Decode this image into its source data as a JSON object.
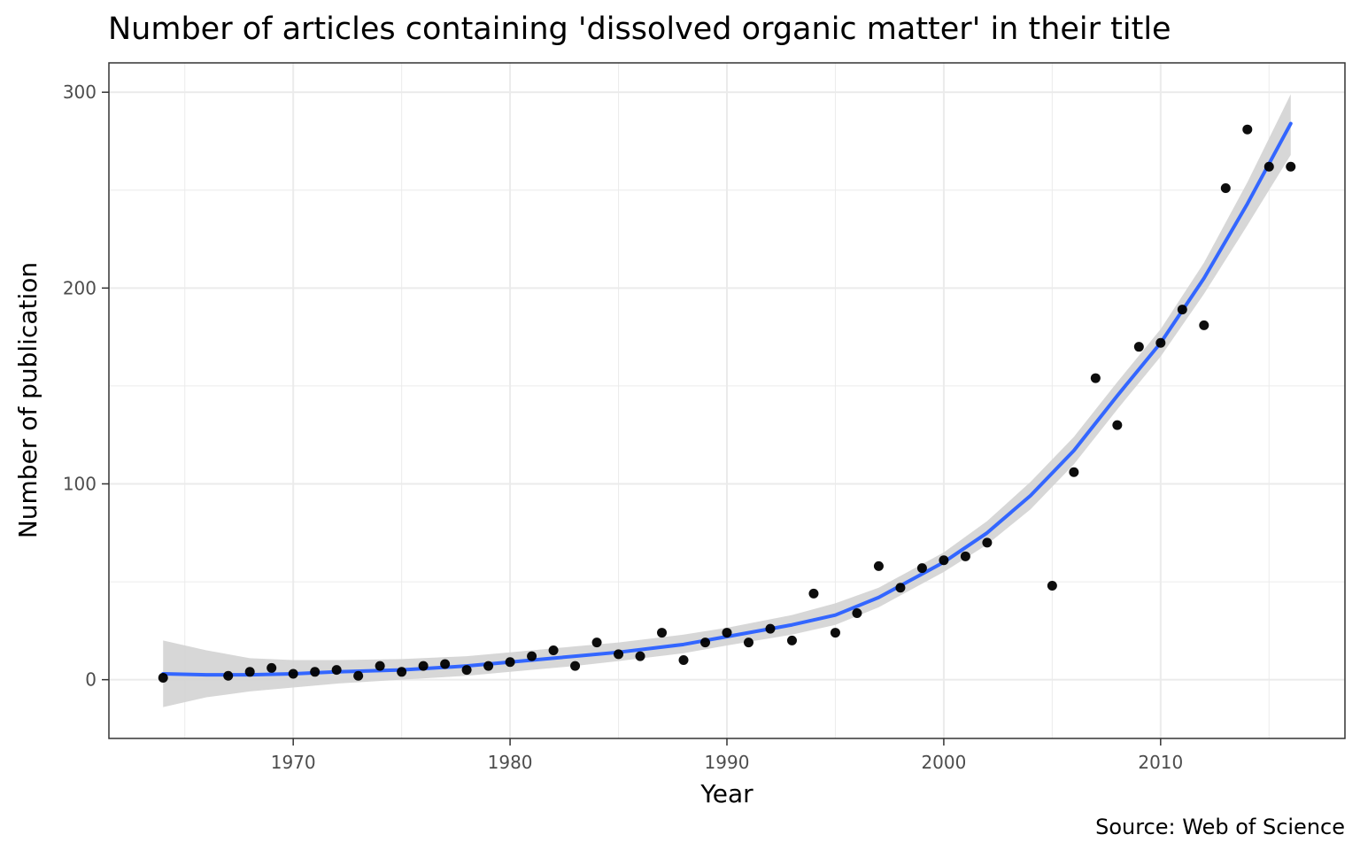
{
  "chart_data": {
    "type": "scatter",
    "title": "Number of articles containing 'dissolved organic matter' in their title",
    "xlabel": "Year",
    "ylabel": "Number of publication",
    "caption": "Source: Web of Science",
    "xlim": [
      1961.5,
      2018.5
    ],
    "ylim": [
      -30,
      315
    ],
    "x_ticks": [
      1970,
      1980,
      1990,
      2000,
      2010
    ],
    "y_ticks": [
      0,
      100,
      200,
      300
    ],
    "x_minor_ticks": [
      1965,
      1975,
      1985,
      1995,
      2005,
      2015
    ],
    "y_minor_ticks": [
      50,
      150,
      250
    ],
    "grid": true,
    "colors": {
      "points": "#000000",
      "trend_line": "#3366ff",
      "confidence_band": "#d3d3d3",
      "grid": "#ebebeb",
      "panel_border": "#333333"
    },
    "points": [
      {
        "x": 1964,
        "y": 1
      },
      {
        "x": 1967,
        "y": 2
      },
      {
        "x": 1968,
        "y": 4
      },
      {
        "x": 1969,
        "y": 6
      },
      {
        "x": 1970,
        "y": 3
      },
      {
        "x": 1971,
        "y": 4
      },
      {
        "x": 1972,
        "y": 5
      },
      {
        "x": 1973,
        "y": 2
      },
      {
        "x": 1974,
        "y": 7
      },
      {
        "x": 1975,
        "y": 4
      },
      {
        "x": 1976,
        "y": 7
      },
      {
        "x": 1977,
        "y": 8
      },
      {
        "x": 1978,
        "y": 5
      },
      {
        "x": 1979,
        "y": 7
      },
      {
        "x": 1980,
        "y": 9
      },
      {
        "x": 1981,
        "y": 12
      },
      {
        "x": 1982,
        "y": 15
      },
      {
        "x": 1983,
        "y": 7
      },
      {
        "x": 1984,
        "y": 19
      },
      {
        "x": 1985,
        "y": 13
      },
      {
        "x": 1986,
        "y": 12
      },
      {
        "x": 1987,
        "y": 24
      },
      {
        "x": 1988,
        "y": 10
      },
      {
        "x": 1989,
        "y": 19
      },
      {
        "x": 1990,
        "y": 24
      },
      {
        "x": 1991,
        "y": 19
      },
      {
        "x": 1992,
        "y": 26
      },
      {
        "x": 1993,
        "y": 20
      },
      {
        "x": 1994,
        "y": 44
      },
      {
        "x": 1995,
        "y": 24
      },
      {
        "x": 1996,
        "y": 34
      },
      {
        "x": 1997,
        "y": 58
      },
      {
        "x": 1998,
        "y": 47
      },
      {
        "x": 1999,
        "y": 57
      },
      {
        "x": 2000,
        "y": 61
      },
      {
        "x": 2001,
        "y": 63
      },
      {
        "x": 2002,
        "y": 70
      },
      {
        "x": 2005,
        "y": 48
      },
      {
        "x": 2006,
        "y": 106
      },
      {
        "x": 2007,
        "y": 154
      },
      {
        "x": 2008,
        "y": 130
      },
      {
        "x": 2009,
        "y": 170
      },
      {
        "x": 2010,
        "y": 172
      },
      {
        "x": 2011,
        "y": 189
      },
      {
        "x": 2012,
        "y": 181
      },
      {
        "x": 2013,
        "y": 251
      },
      {
        "x": 2014,
        "y": 281
      },
      {
        "x": 2015,
        "y": 262
      },
      {
        "x": 2016,
        "y": 262
      }
    ],
    "trend": [
      {
        "x": 1964,
        "y": 3,
        "lo": -14,
        "hi": 20
      },
      {
        "x": 1966,
        "y": 2.5,
        "lo": -9,
        "hi": 15
      },
      {
        "x": 1968,
        "y": 2.5,
        "lo": -6,
        "hi": 11
      },
      {
        "x": 1970,
        "y": 3,
        "lo": -4,
        "hi": 10
      },
      {
        "x": 1972,
        "y": 4,
        "lo": -2,
        "hi": 10
      },
      {
        "x": 1975,
        "y": 5,
        "lo": 0,
        "hi": 10.5
      },
      {
        "x": 1978,
        "y": 7,
        "lo": 2,
        "hi": 12
      },
      {
        "x": 1980,
        "y": 9,
        "lo": 4,
        "hi": 14
      },
      {
        "x": 1983,
        "y": 12,
        "lo": 7,
        "hi": 17
      },
      {
        "x": 1985,
        "y": 14,
        "lo": 9.5,
        "hi": 19
      },
      {
        "x": 1988,
        "y": 18,
        "lo": 13.5,
        "hi": 23
      },
      {
        "x": 1990,
        "y": 22,
        "lo": 17.5,
        "hi": 26.5
      },
      {
        "x": 1993,
        "y": 28,
        "lo": 23,
        "hi": 33
      },
      {
        "x": 1995,
        "y": 33,
        "lo": 28,
        "hi": 39
      },
      {
        "x": 1997,
        "y": 42,
        "lo": 37,
        "hi": 47
      },
      {
        "x": 2000,
        "y": 60,
        "lo": 55,
        "hi": 65
      },
      {
        "x": 2002,
        "y": 75,
        "lo": 69,
        "hi": 81
      },
      {
        "x": 2004,
        "y": 94,
        "lo": 87,
        "hi": 101
      },
      {
        "x": 2006,
        "y": 117,
        "lo": 110,
        "hi": 124
      },
      {
        "x": 2008,
        "y": 145,
        "lo": 138,
        "hi": 152
      },
      {
        "x": 2010,
        "y": 172,
        "lo": 165,
        "hi": 179
      },
      {
        "x": 2012,
        "y": 205,
        "lo": 197,
        "hi": 213
      },
      {
        "x": 2014,
        "y": 243,
        "lo": 232,
        "hi": 254
      },
      {
        "x": 2016,
        "y": 284,
        "lo": 268,
        "hi": 299
      }
    ]
  }
}
